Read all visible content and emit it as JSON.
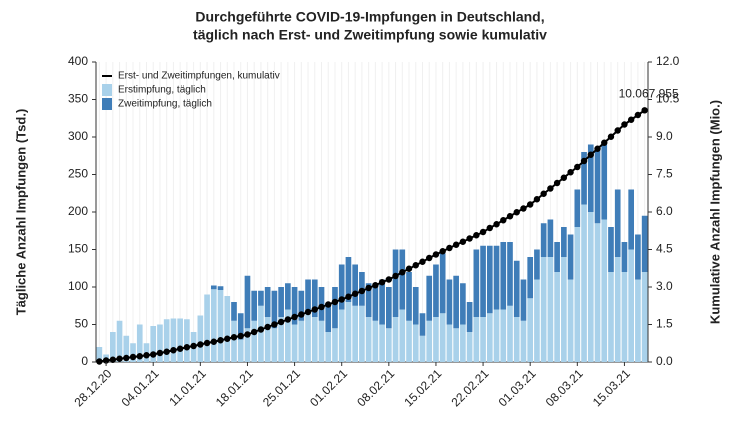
{
  "chart_data": {
    "type": "bar",
    "title": "Durchgeführte COVID-19-Impfungen in Deutschland,",
    "subtitle": "täglich nach Erst- und Zweitimpfung sowie kumulativ",
    "y_label": "Tägliche Anzahl Impfungen (Tsd.)",
    "y2_label": "Kumulative Anzahl Impfungen (Mio.)",
    "legend": "top-left",
    "categories": [
      null,
      "28.12.20",
      null,
      null,
      null,
      null,
      null,
      null,
      "04.01.21",
      null,
      null,
      null,
      null,
      null,
      null,
      "11.01.21",
      null,
      null,
      null,
      null,
      null,
      null,
      "18.01.21",
      null,
      null,
      null,
      null,
      null,
      null,
      "25.01.21",
      null,
      null,
      null,
      null,
      null,
      null,
      "01.02.21",
      null,
      null,
      null,
      null,
      null,
      null,
      "08.02.21",
      null,
      null,
      null,
      null,
      null,
      null,
      "15.02.21",
      null,
      null,
      null,
      null,
      null,
      null,
      "22.02.21",
      null,
      null,
      null,
      null,
      null,
      null,
      "01.03.21",
      null,
      null,
      null,
      null,
      null,
      null,
      "08.03.21",
      null,
      null,
      null,
      null,
      null,
      null,
      "15.03.21",
      null,
      null,
      null
    ],
    "series": [
      {
        "name": "Erst- und Zweitimpfungen, kumulativ",
        "type": "line",
        "axis": "y2",
        "color": "#000000",
        "values": [
          0.02,
          0.06,
          0.09,
          0.13,
          0.16,
          0.2,
          0.23,
          0.27,
          0.3,
          0.36,
          0.41,
          0.47,
          0.53,
          0.59,
          0.64,
          0.7,
          0.76,
          0.81,
          0.87,
          0.93,
          0.99,
          1.04,
          1.1,
          1.2,
          1.3,
          1.4,
          1.5,
          1.6,
          1.7,
          1.8,
          1.9,
          2.0,
          2.1,
          2.2,
          2.3,
          2.4,
          2.5,
          2.61,
          2.73,
          2.84,
          2.96,
          3.07,
          3.19,
          3.3,
          3.44,
          3.59,
          3.73,
          3.87,
          4.01,
          4.16,
          4.3,
          4.43,
          4.56,
          4.69,
          4.81,
          4.94,
          5.07,
          5.2,
          5.36,
          5.51,
          5.67,
          5.83,
          5.99,
          6.14,
          6.3,
          6.51,
          6.73,
          6.94,
          7.16,
          7.37,
          7.59,
          7.8,
          8.04,
          8.29,
          8.53,
          8.77,
          9.01,
          9.26,
          9.5,
          9.69,
          9.88,
          10.067955
        ],
        "value_labels": [
          null,
          null,
          null,
          null,
          null,
          null,
          null,
          null,
          null,
          null,
          null,
          null,
          null,
          null,
          null,
          null,
          null,
          null,
          null,
          null,
          null,
          null,
          null,
          null,
          null,
          null,
          null,
          null,
          null,
          null,
          null,
          null,
          null,
          null,
          null,
          null,
          null,
          null,
          null,
          null,
          null,
          null,
          null,
          null,
          null,
          null,
          null,
          null,
          null,
          null,
          null,
          null,
          null,
          null,
          null,
          null,
          null,
          null,
          null,
          null,
          null,
          null,
          null,
          null,
          null,
          null,
          null,
          null,
          null,
          null,
          null,
          null,
          null,
          null,
          null,
          null,
          null,
          null,
          null,
          null,
          null,
          "10.067.955"
        ]
      },
      {
        "name": "Erstimpfung, täglich",
        "type": "bar",
        "color": "#a9d1ea",
        "values": [
          20,
          10,
          40,
          55,
          35,
          25,
          50,
          25,
          48,
          50,
          57,
          58,
          58,
          57,
          40,
          62,
          90,
          97,
          96,
          88,
          55,
          30,
          45,
          55,
          75,
          60,
          45,
          60,
          70,
          50,
          55,
          65,
          60,
          55,
          40,
          45,
          70,
          80,
          75,
          75,
          60,
          55,
          50,
          45,
          60,
          70,
          55,
          50,
          35,
          55,
          60,
          65,
          50,
          45,
          50,
          40,
          60,
          60,
          65,
          70,
          70,
          75,
          60,
          55,
          85,
          110,
          140,
          140,
          120,
          140,
          110,
          180,
          210,
          200,
          185,
          190,
          120,
          140,
          120,
          150,
          110,
          120
        ]
      },
      {
        "name": "Zweitimpfung, täglich",
        "type": "bar",
        "color": "#3f7db8",
        "values": [
          0,
          0,
          0,
          0,
          0,
          0,
          0,
          0,
          0,
          0,
          0,
          0,
          0,
          0,
          0,
          0,
          0,
          5,
          5,
          0,
          25,
          35,
          70,
          40,
          20,
          40,
          50,
          40,
          35,
          50,
          40,
          45,
          50,
          45,
          35,
          55,
          60,
          60,
          55,
          45,
          45,
          50,
          60,
          55,
          90,
          80,
          65,
          50,
          30,
          60,
          70,
          80,
          60,
          70,
          55,
          40,
          90,
          95,
          90,
          85,
          90,
          85,
          75,
          55,
          55,
          40,
          45,
          50,
          40,
          40,
          60,
          50,
          70,
          90,
          100,
          100,
          60,
          90,
          40,
          80,
          60,
          75
        ]
      }
    ],
    "ylim": [
      0,
      400
    ],
    "yticks": [
      0,
      50,
      100,
      150,
      200,
      250,
      300,
      350,
      400
    ],
    "y2lim": [
      0,
      12
    ],
    "y2ticks": [
      {
        "value": 0,
        "label": "0.0"
      },
      1.5,
      {
        "value": 3,
        "label": "3.0"
      },
      4.5,
      {
        "value": 6,
        "label": "6.0"
      },
      7.5,
      {
        "value": 9,
        "label": "9.0"
      },
      10.5,
      {
        "value": 12,
        "label": "12.0"
      }
    ]
  }
}
